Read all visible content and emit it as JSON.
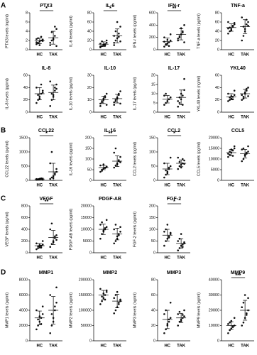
{
  "panel_labels": [
    "A",
    "B",
    "C",
    "D"
  ],
  "chart_data": [
    {
      "type": "scatter",
      "title": "PTX3",
      "ylabel": "PTX3 levels (ng/ml)",
      "ylim": [
        0,
        8
      ],
      "yticks": [
        0,
        2,
        4,
        6,
        8
      ],
      "annotation": "*",
      "groups": [
        {
          "label": "HC",
          "values": [
            1.2,
            1.5,
            1.8,
            2.0,
            2.2,
            1.6,
            2.5,
            1.0,
            2.8,
            1.9,
            2.3,
            1.4
          ],
          "mean": 1.9,
          "sd": 0.6
        },
        {
          "label": "TAK",
          "values": [
            1.0,
            2.0,
            2.5,
            3.0,
            4.5,
            1.5,
            3.8,
            2.2,
            5.0,
            0.8
          ],
          "mean": 2.6,
          "sd": 1.4
        }
      ]
    },
    {
      "type": "scatter",
      "title": "IL-6",
      "ylabel": "IL-6 levels (pg/ml)",
      "ylim": [
        0,
        80
      ],
      "yticks": [
        0,
        20,
        40,
        60,
        80
      ],
      "annotation": "*",
      "groups": [
        {
          "label": "HC",
          "values": [
            5,
            8,
            10,
            12,
            15,
            7,
            18,
            11,
            9,
            20,
            13
          ],
          "mean": 12,
          "sd": 5
        },
        {
          "label": "TAK",
          "values": [
            10,
            20,
            25,
            35,
            50,
            15,
            40,
            60,
            28,
            18,
            30
          ],
          "mean": 30,
          "sd": 15
        }
      ]
    },
    {
      "type": "scatter",
      "title": "IFN-r",
      "ylabel": "IFN-r levels (pg/ml)",
      "ylim": [
        0,
        600
      ],
      "yticks": [
        0,
        200,
        400,
        600
      ],
      "annotation": "**",
      "groups": [
        {
          "label": "HC",
          "values": [
            50,
            80,
            100,
            120,
            150,
            200,
            90,
            160,
            60,
            250,
            130
          ],
          "mean": 130,
          "sd": 60
        },
        {
          "label": "TAK",
          "values": [
            150,
            200,
            250,
            300,
            400,
            180,
            220,
            350,
            280,
            120
          ],
          "mean": 250,
          "sd": 90
        }
      ]
    },
    {
      "type": "scatter",
      "title": "TNF-a",
      "ylabel": "TNF-a levels (pg/ml)",
      "ylim": [
        0,
        80
      ],
      "yticks": [
        0,
        20,
        40,
        60,
        80
      ],
      "groups": [
        {
          "label": "HC",
          "values": [
            35,
            40,
            45,
            50,
            55,
            60,
            48,
            42,
            52,
            58,
            46
          ],
          "mean": 48,
          "sd": 8
        },
        {
          "label": "TAK",
          "values": [
            20,
            30,
            45,
            55,
            60,
            70,
            50,
            40,
            65,
            52
          ],
          "mean": 50,
          "sd": 15
        }
      ]
    },
    {
      "type": "scatter",
      "title": "IL-8",
      "ylabel": "IL-8 levels (pg/ml)",
      "ylim": [
        0,
        60
      ],
      "yticks": [
        0,
        20,
        40,
        60
      ],
      "groups": [
        {
          "label": "HC",
          "values": [
            15,
            20,
            25,
            30,
            35,
            40,
            28,
            22,
            45,
            32
          ],
          "mean": 30,
          "sd": 10
        },
        {
          "label": "TAK",
          "values": [
            10,
            20,
            28,
            35,
            45,
            50,
            30,
            25,
            40,
            38
          ],
          "mean": 32,
          "sd": 12
        }
      ]
    },
    {
      "type": "scatter",
      "title": "IL-10",
      "ylabel": "IL-10 levels (pg/ml)",
      "ylim": [
        0,
        30
      ],
      "yticks": [
        0,
        10,
        20,
        30
      ],
      "groups": [
        {
          "label": "HC",
          "values": [
            5,
            8,
            10,
            12,
            15,
            7,
            9,
            11,
            13,
            6
          ],
          "mean": 10,
          "sd": 3
        },
        {
          "label": "TAK",
          "values": [
            6,
            9,
            11,
            14,
            17,
            8,
            10,
            12,
            15,
            7
          ],
          "mean": 11,
          "sd": 3.5
        }
      ]
    },
    {
      "type": "scatter",
      "title": "IL-17",
      "ylabel": "IL-17 levels (pg/ml)",
      "ylim": [
        0,
        20
      ],
      "yticks": [
        0,
        5,
        10,
        15,
        20
      ],
      "groups": [
        {
          "label": "HC",
          "values": [
            4,
            5,
            6,
            7,
            8,
            9,
            10,
            6,
            7,
            8
          ],
          "mean": 7,
          "sd": 2
        },
        {
          "label": "TAK",
          "values": [
            3,
            5,
            7,
            9,
            12,
            6,
            8,
            10,
            4,
            18
          ],
          "mean": 8,
          "sd": 4
        }
      ]
    },
    {
      "type": "scatter",
      "title": "YKL40",
      "ylabel": "YKL40 levels (ng/ml)",
      "ylim": [
        0,
        60
      ],
      "yticks": [
        0,
        20,
        40,
        60
      ],
      "groups": [
        {
          "label": "HC",
          "values": [
            18,
            20,
            22,
            25,
            28,
            30,
            24,
            26,
            21,
            35
          ],
          "mean": 25,
          "sd": 5
        },
        {
          "label": "TAK",
          "values": [
            20,
            25,
            30,
            35,
            40,
            28,
            22,
            32,
            38,
            26
          ],
          "mean": 30,
          "sd": 7
        }
      ]
    },
    {
      "type": "scatter",
      "title": "CCL22",
      "ylabel": "CCL22 levels (pg/ml)",
      "ylim": [
        0,
        1500
      ],
      "yticks": [
        0,
        500,
        1000,
        1500
      ],
      "annotation": "*",
      "groups": [
        {
          "label": "HC",
          "values": [
            20,
            30,
            40,
            50,
            60,
            45,
            35,
            55,
            70,
            25
          ],
          "mean": 45,
          "sd": 15
        },
        {
          "label": "TAK",
          "values": [
            50,
            100,
            150,
            200,
            300,
            600,
            1000,
            80,
            250,
            400
          ],
          "mean": 300,
          "sd": 300
        }
      ]
    },
    {
      "type": "scatter",
      "title": "IL-16",
      "ylabel": "IL-16 levels (pg/ml)",
      "ylim": [
        0,
        200
      ],
      "yticks": [
        0,
        50,
        100,
        150,
        200
      ],
      "annotation": "**",
      "groups": [
        {
          "label": "HC",
          "values": [
            40,
            50,
            55,
            60,
            65,
            70,
            45,
            75,
            58,
            62
          ],
          "mean": 60,
          "sd": 10
        },
        {
          "label": "TAK",
          "values": [
            60,
            70,
            80,
            90,
            110,
            130,
            150,
            75,
            95,
            85
          ],
          "mean": 90,
          "sd": 25
        }
      ]
    },
    {
      "type": "scatter",
      "title": "CCL2",
      "ylabel": "CCL2 levels (pg/ml)",
      "ylim": [
        0,
        150
      ],
      "yticks": [
        0,
        50,
        100,
        150
      ],
      "annotation": "*",
      "groups": [
        {
          "label": "HC",
          "values": [
            10,
            20,
            30,
            40,
            50,
            60,
            35,
            25,
            45,
            80
          ],
          "mean": 40,
          "sd": 20
        },
        {
          "label": "TAK",
          "values": [
            40,
            50,
            55,
            60,
            70,
            80,
            65,
            45,
            75,
            58
          ],
          "mean": 60,
          "sd": 12
        }
      ]
    },
    {
      "type": "scatter",
      "title": "CCL5",
      "ylabel": "CCL5 levels (pg/ml)",
      "ylim": [
        0,
        20000
      ],
      "yticks": [
        0,
        5000,
        10000,
        15000,
        20000
      ],
      "groups": [
        {
          "label": "HC",
          "values": [
            11000,
            12000,
            13000,
            14000,
            15000,
            12500,
            13500,
            14500,
            11500,
            16000
          ],
          "mean": 13000,
          "sd": 1500
        },
        {
          "label": "TAK",
          "values": [
            9000,
            10000,
            11500,
            12500,
            13500,
            14500,
            15000,
            12000,
            13000,
            16000
          ],
          "mean": 12500,
          "sd": 2000
        }
      ]
    },
    {
      "type": "scatter",
      "title": "VEGF",
      "ylabel": "VEGF levels (pg/ml)",
      "ylim": [
        0,
        800
      ],
      "yticks": [
        0,
        200,
        400,
        600,
        800
      ],
      "annotation": "**",
      "groups": [
        {
          "label": "HC",
          "values": [
            60,
            80,
            100,
            120,
            140,
            160,
            110,
            130,
            90,
            200
          ],
          "mean": 120,
          "sd": 40
        },
        {
          "label": "TAK",
          "values": [
            100,
            150,
            200,
            250,
            300,
            400,
            500,
            180,
            280,
            220
          ],
          "mean": 260,
          "sd": 120
        }
      ]
    },
    {
      "type": "scatter",
      "title": "PDGF-AB",
      "ylabel": "PDGF-AB levels (pg/ml)",
      "ylim": [
        0,
        20000
      ],
      "yticks": [
        0,
        5000,
        10000,
        15000,
        20000
      ],
      "groups": [
        {
          "label": "HC",
          "values": [
            6000,
            8000,
            9000,
            10000,
            11000,
            12000,
            13000,
            9500,
            10500,
            14000
          ],
          "mean": 10000,
          "sd": 2200
        },
        {
          "label": "TAK",
          "values": [
            4000,
            5000,
            6000,
            8000,
            9000,
            10000,
            12000,
            7000,
            7500,
            11000
          ],
          "mean": 8000,
          "sd": 2500
        }
      ]
    },
    {
      "type": "scatter",
      "title": "FGF-2",
      "ylabel": "FGF-2 levels (pg/ml)",
      "ylim": [
        0,
        200
      ],
      "yticks": [
        0,
        50,
        100,
        150,
        200
      ],
      "annotation": "*",
      "groups": [
        {
          "label": "HC",
          "values": [
            30,
            50,
            60,
            70,
            80,
            90,
            100,
            120,
            65,
            85
          ],
          "mean": 75,
          "sd": 25
        },
        {
          "label": "TAK",
          "values": [
            10,
            20,
            30,
            35,
            40,
            50,
            60,
            80,
            25,
            45
          ],
          "mean": 40,
          "sd": 20
        }
      ]
    },
    {
      "type": "scatter",
      "title": "MMP1",
      "ylabel": "MMP1 levels (pg/ml)",
      "ylim": [
        0,
        8000
      ],
      "yticks": [
        0,
        2000,
        4000,
        6000,
        8000
      ],
      "groups": [
        {
          "label": "HC",
          "values": [
            1500,
            2000,
            2500,
            3000,
            3500,
            4000,
            2800,
            3200,
            2200,
            4500
          ],
          "mean": 3000,
          "sd": 900
        },
        {
          "label": "TAK",
          "values": [
            1000,
            2000,
            3000,
            4000,
            5000,
            6000,
            3500,
            2500,
            4500,
            7000
          ],
          "mean": 4000,
          "sd": 1800
        }
      ]
    },
    {
      "type": "scatter",
      "title": "MMP2",
      "ylabel": "MMP2 levels (pg/ml)",
      "ylim": [
        0,
        200000
      ],
      "yticks": [
        0,
        50000,
        100000,
        150000,
        200000
      ],
      "groups": [
        {
          "label": "HC",
          "values": [
            120000,
            130000,
            140000,
            150000,
            160000,
            170000,
            145000,
            155000,
            135000,
            165000
          ],
          "mean": 150000,
          "sd": 15000
        },
        {
          "label": "TAK",
          "values": [
            90000,
            100000,
            110000,
            120000,
            130000,
            140000,
            150000,
            160000,
            125000,
            135000
          ],
          "mean": 130000,
          "sd": 22000
        }
      ]
    },
    {
      "type": "scatter",
      "title": "MMP3",
      "ylabel": "MMP3 levels (ng/ml)",
      "ylim": [
        0,
        80
      ],
      "yticks": [
        0,
        20,
        40,
        60,
        80
      ],
      "groups": [
        {
          "label": "HC",
          "values": [
            10,
            15,
            20,
            25,
            30,
            35,
            40,
            22,
            28,
            50
          ],
          "mean": 28,
          "sd": 12
        },
        {
          "label": "TAK",
          "values": [
            20,
            25,
            28,
            30,
            32,
            35,
            38,
            26,
            34,
            40
          ],
          "mean": 30,
          "sd": 6
        }
      ]
    },
    {
      "type": "scatter",
      "title": "MMP9",
      "ylabel": "MMP9 levels (pg/ml)",
      "ylim": [
        0,
        40000
      ],
      "yticks": [
        0,
        10000,
        20000,
        30000,
        40000
      ],
      "annotation": "***",
      "groups": [
        {
          "label": "HC",
          "values": [
            5000,
            7000,
            8000,
            9000,
            10000,
            11000,
            12000,
            13000,
            9500,
            15000
          ],
          "mean": 10000,
          "sd": 2500
        },
        {
          "label": "TAK",
          "values": [
            10000,
            12000,
            15000,
            18000,
            20000,
            22000,
            25000,
            30000,
            17000,
            28000
          ],
          "mean": 20000,
          "sd": 6500
        }
      ]
    }
  ]
}
